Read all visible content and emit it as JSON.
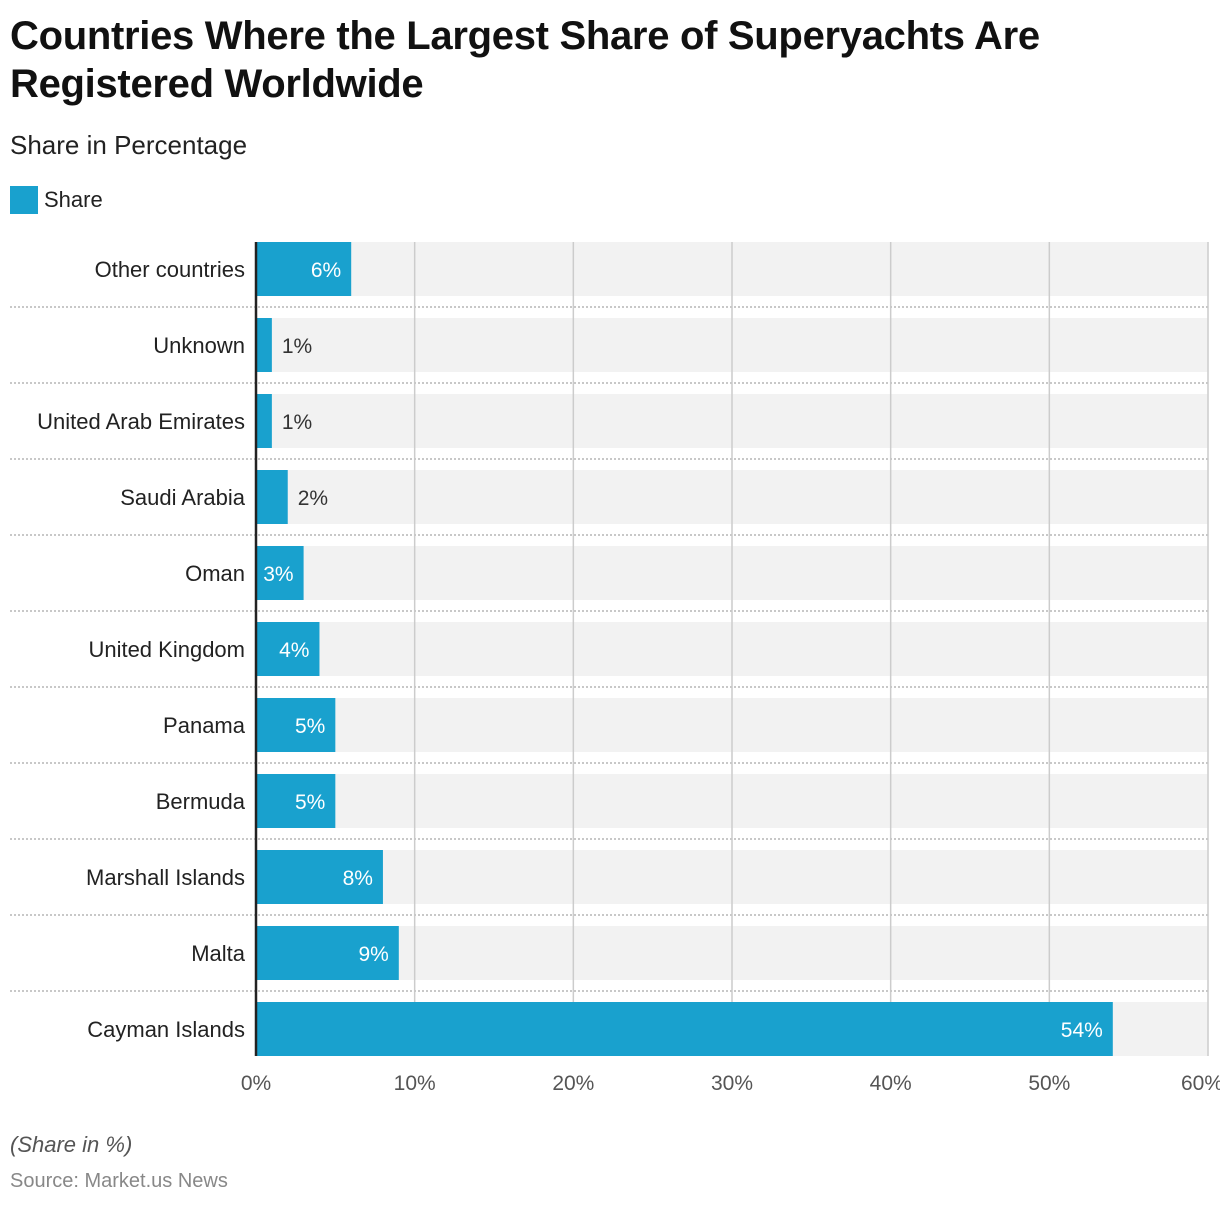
{
  "title": "Countries Where the Largest Share of Superyachts Are Registered Worldwide",
  "subtitle": "Share in Percentage",
  "note": "(Share in %)",
  "source": "Source: Market.us News",
  "colors": {
    "bar": "#19a1ce",
    "track": "#f2f2f2",
    "grid": "#cccccc"
  },
  "chart_data": {
    "type": "bar",
    "orientation": "horizontal",
    "legend": [
      {
        "name": "Share",
        "color": "#19a1ce"
      }
    ],
    "legend_position": "top-left",
    "categories": [
      "Other countries",
      "Unknown",
      "United Arab Emirates",
      "Saudi Arabia",
      "Oman",
      "United Kingdom",
      "Panama",
      "Bermuda",
      "Marshall Islands",
      "Malta",
      "Cayman Islands"
    ],
    "values": [
      6,
      1,
      1,
      2,
      3,
      4,
      5,
      5,
      8,
      9,
      54
    ],
    "labels": [
      "6%",
      "1%",
      "1%",
      "2%",
      "3%",
      "4%",
      "5%",
      "5%",
      "8%",
      "9%",
      "54%"
    ],
    "xlim": [
      0,
      60
    ],
    "xticks": [
      "0%",
      "10%",
      "20%",
      "30%",
      "40%",
      "50%",
      "60%"
    ],
    "grid": true
  }
}
